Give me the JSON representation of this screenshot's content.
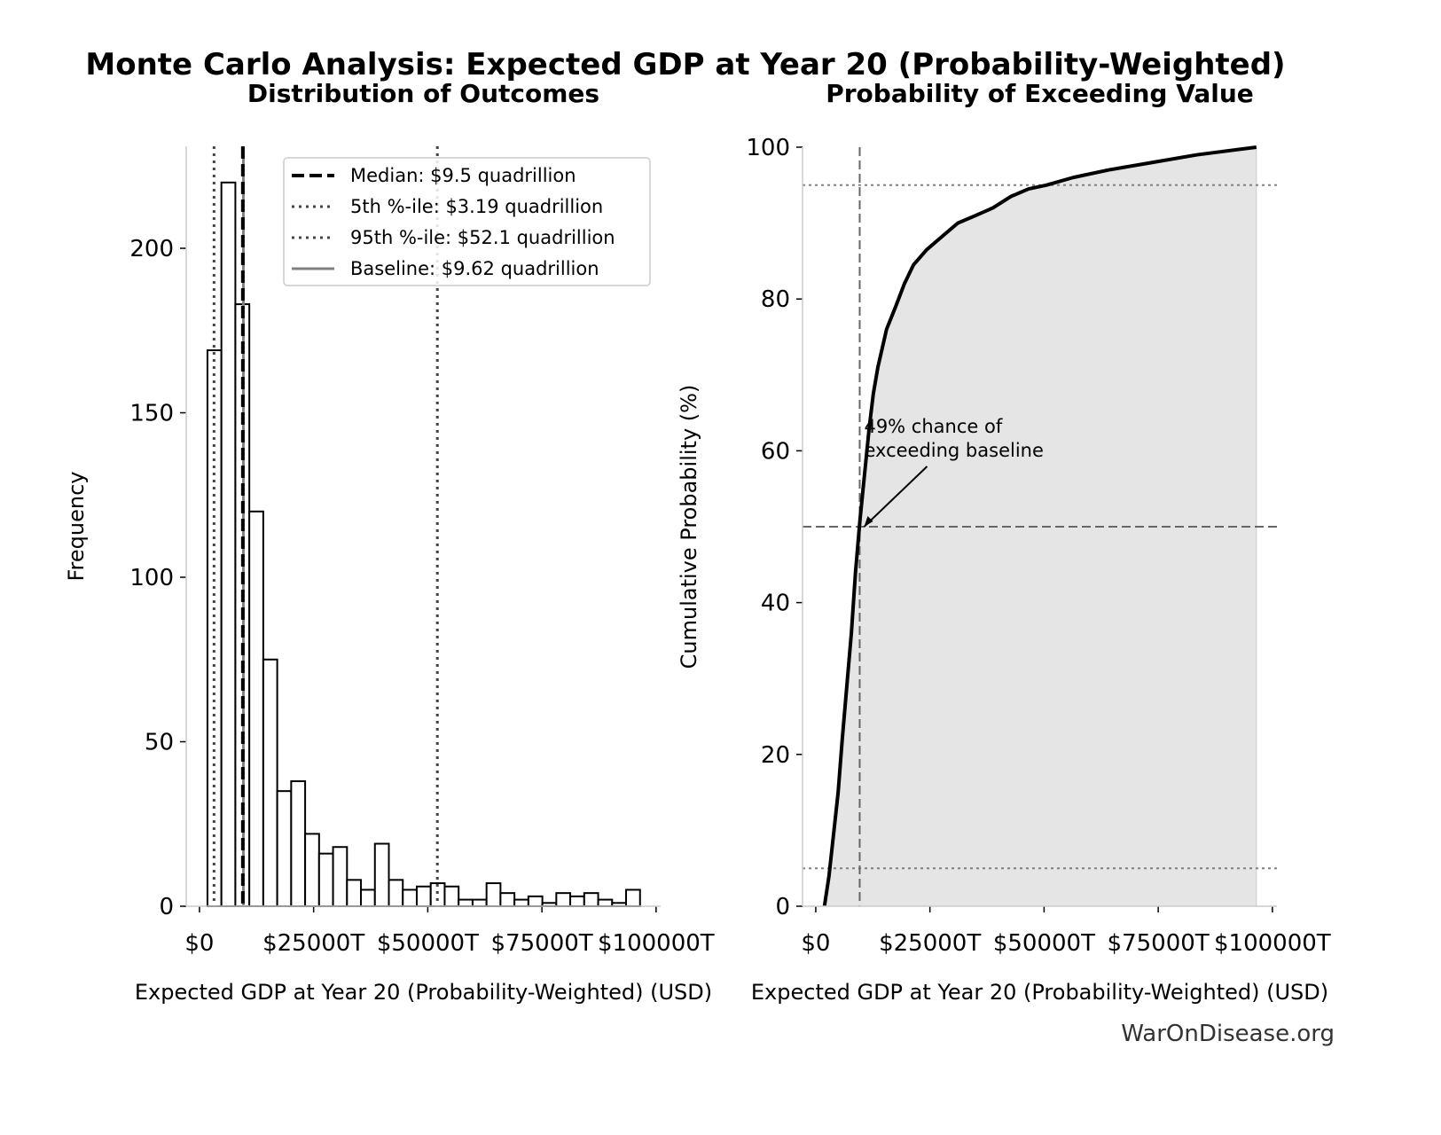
{
  "title": "Monte Carlo Analysis: Expected GDP at Year 20 (Probability-Weighted)",
  "source": "WarOnDisease.org",
  "chart_data": [
    {
      "type": "histogram",
      "title": "Distribution of Outcomes",
      "x_label": "Expected GDP at Year 20 (Probability-Weighted) (USD)",
      "y_label": "Frequency",
      "bins": [
        1750,
        4806,
        7862,
        10918,
        13974,
        17030,
        20086,
        23142,
        26198,
        29254,
        32310,
        35366,
        38422,
        41478,
        44534,
        47590,
        50646,
        53702,
        56758,
        59814,
        62870,
        65926,
        68982,
        72038,
        75094,
        78150,
        81206,
        84262,
        87318,
        90374,
        93430,
        96486
      ],
      "values": [
        169,
        220,
        183,
        120,
        75,
        35,
        38,
        22,
        16,
        18,
        8,
        5,
        19,
        8,
        5,
        6,
        7,
        6,
        2,
        2,
        7,
        4,
        2,
        3,
        1,
        4,
        3,
        4,
        2,
        1,
        5
      ],
      "color": "#ffffff",
      "edge_color": "#000000",
      "xlim": [
        -2900,
        101000
      ],
      "ylim": [
        0,
        231
      ],
      "xticks": [
        {
          "value": 0,
          "label": "$0"
        },
        {
          "value": 25000,
          "label": "$25000T"
        },
        {
          "value": 50000,
          "label": "$50000T"
        },
        {
          "value": 75000,
          "label": "$75000T"
        },
        {
          "value": 100000,
          "label": "$100000T"
        }
      ],
      "yticks": [
        0,
        50,
        100,
        150,
        200
      ],
      "legend": "upper right",
      "lines": [
        {
          "name": "Median: $9.5 quadrillion",
          "value": 9500,
          "style": "dashed",
          "color": "#000000"
        },
        {
          "name": "5th %-ile: $3.19 quadrillion",
          "value": 3190,
          "style": "dotted",
          "color": "#444444"
        },
        {
          "name": "95th %-ile: $52.1 quadrillion",
          "value": 52100,
          "style": "dotted",
          "color": "#444444"
        },
        {
          "name": "Baseline: $9.62 quadrillion",
          "value": 9620,
          "style": "solid",
          "color": "#808080"
        }
      ]
    },
    {
      "type": "cdf",
      "title": "Probability of Exceeding Value",
      "x_label": "Expected GDP at Year 20 (Probability-Weighted) (USD)",
      "y_label": "Cumulative Probability (%)",
      "x": [
        1900,
        2900,
        3900,
        4900,
        5800,
        6800,
        7800,
        8700,
        9700,
        10700,
        11700,
        12600,
        13600,
        15500,
        17500,
        19400,
        21400,
        24300,
        27200,
        31100,
        35000,
        38800,
        42700,
        46600,
        50500,
        56300,
        64100,
        73800,
        83500,
        96500
      ],
      "values": [
        0,
        4,
        9.5,
        15,
        22,
        29,
        36,
        44,
        51,
        57,
        63,
        67.5,
        71,
        76,
        79,
        82,
        84.5,
        86.5,
        88,
        90,
        91,
        92,
        93.5,
        94.5,
        95,
        96,
        97,
        98,
        99,
        100
      ],
      "color": "#000000",
      "fill_color": "#e5e5e5",
      "xlim": [
        -2900,
        101000
      ],
      "ylim": [
        0,
        100
      ],
      "xticks": [
        {
          "value": 0,
          "label": "$0"
        },
        {
          "value": 25000,
          "label": "$25000T"
        },
        {
          "value": 50000,
          "label": "$50000T"
        },
        {
          "value": 75000,
          "label": "$75000T"
        },
        {
          "value": 100000,
          "label": "$100000T"
        }
      ],
      "yticks": [
        0,
        20,
        40,
        60,
        80,
        100
      ],
      "vlines": [
        {
          "value": 9620,
          "style": "dashed",
          "color": "#666666"
        }
      ],
      "hlines": [
        {
          "value": 5,
          "style": "dotted",
          "color": "#808080"
        },
        {
          "value": 50,
          "style": "dashed",
          "color": "#666666"
        },
        {
          "value": 95,
          "style": "dotted",
          "color": "#808080"
        }
      ],
      "annotation": {
        "lines": [
          "49% chance of",
          "exceeding baseline"
        ],
        "x": 9620,
        "y": 50
      }
    }
  ]
}
